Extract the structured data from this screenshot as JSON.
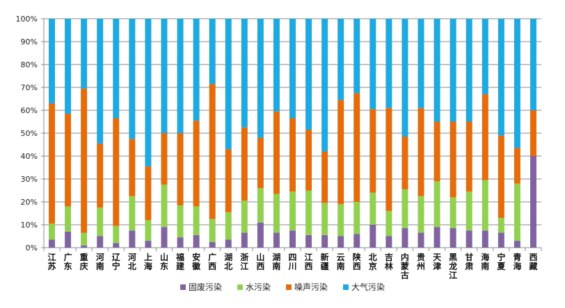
{
  "chart_data": {
    "type": "bar",
    "stacked": true,
    "percent": true,
    "categories": [
      "江苏",
      "广东",
      "重庆",
      "河南",
      "辽宁",
      "河北",
      "上海",
      "山东",
      "福建",
      "安徽",
      "广西",
      "湖北",
      "浙江",
      "山西",
      "湖南",
      "四川",
      "江西",
      "新疆",
      "云南",
      "陕西",
      "北京",
      "吉林",
      "内蒙古",
      "贵州",
      "天津",
      "黑龙江",
      "甘肃",
      "海南",
      "宁夏",
      "青海",
      "西藏"
    ],
    "series": [
      {
        "name": "固废污染",
        "color": "#8064a2",
        "values": [
          3.5,
          7,
          1,
          5,
          2,
          7.5,
          3,
          9,
          4.5,
          5.5,
          2.5,
          3.5,
          6.5,
          11,
          6.5,
          7.5,
          5.5,
          5.5,
          5,
          6,
          10,
          5,
          8.5,
          6.5,
          9,
          8.5,
          7.5,
          7.5,
          6.5,
          3,
          40
        ]
      },
      {
        "name": "水污染",
        "color": "#92d050",
        "values": [
          7,
          11,
          5.5,
          12.5,
          7.5,
          15,
          9,
          18.5,
          14,
          12.5,
          10,
          12,
          14,
          15,
          17,
          17,
          19.5,
          14,
          14,
          14,
          14,
          11,
          17,
          16,
          20,
          13.5,
          17,
          22,
          6.5,
          25,
          0
        ]
      },
      {
        "name": "噪声污染",
        "color": "#e46c0a",
        "values": [
          52.5,
          40.5,
          63,
          28,
          47,
          25,
          23.5,
          22.5,
          31.5,
          37.5,
          59,
          27.5,
          32,
          22,
          36,
          32,
          26.5,
          22.5,
          45.5,
          47.5,
          36.5,
          45,
          23,
          38.5,
          26,
          33,
          30.5,
          37.5,
          36,
          15.5,
          20
        ]
      },
      {
        "name": "大气污染",
        "color": "#1ea9e1",
        "values": [
          37,
          41.5,
          30.5,
          54.5,
          43.5,
          52.5,
          64.5,
          50,
          50,
          44.5,
          28.5,
          57,
          47.5,
          52,
          40.5,
          43.5,
          48.5,
          58,
          35.5,
          32.5,
          39.5,
          39,
          51.5,
          39,
          45,
          45,
          45,
          33,
          51,
          56.5,
          40
        ]
      }
    ],
    "yticks": [
      "0%",
      "10%",
      "20%",
      "30%",
      "40%",
      "50%",
      "60%",
      "70%",
      "80%",
      "90%",
      "100%"
    ],
    "ylim": [
      0,
      100
    ],
    "grid": true,
    "legend": "bottom"
  }
}
